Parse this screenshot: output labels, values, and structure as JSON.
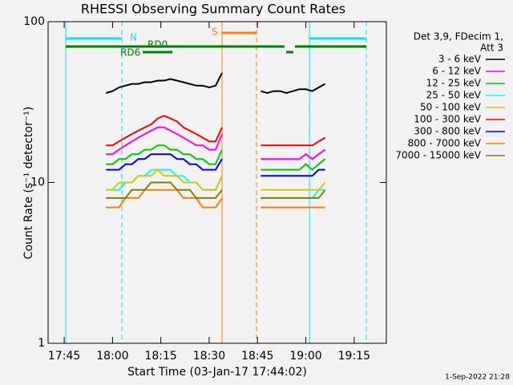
{
  "chart_data": {
    "type": "line",
    "title": "RHESSI Observing Summary Count Rates",
    "x_label": "Start Time (03-Jan-17 17:44:02)",
    "y_label": "Count Rate (s⁻¹ detector⁻¹)",
    "log_y": true,
    "xlim": [
      "17:40",
      "19:25"
    ],
    "ylim": [
      1,
      100
    ],
    "yticks": [
      1,
      10,
      100
    ],
    "xticks": [
      "17:45",
      "18:00",
      "18:15",
      "18:30",
      "18:45",
      "19:00",
      "19:15"
    ],
    "legend_header": [
      "Det 3,9, FDecim 1,",
      "Att 3"
    ],
    "annotations": [
      "N",
      "RD0",
      "RD6",
      "S"
    ],
    "timestamp": "1-Sep-2022 21:28",
    "x": [
      "17:58",
      "18:00",
      "18:02",
      "18:04",
      "18:06",
      "18:08",
      "18:10",
      "18:12",
      "18:14",
      "18:16",
      "18:18",
      "18:20",
      "18:22",
      "18:24",
      "18:26",
      "18:28",
      "18:30",
      "18:32",
      "18:34",
      "18:40",
      "18:46",
      "18:48",
      "18:50",
      "18:52",
      "18:54",
      "18:56",
      "18:58",
      "19:00",
      "19:02",
      "19:04",
      "19:06"
    ],
    "series": [
      {
        "name": "3 - 6 keV",
        "color": "#000000",
        "values": [
          36,
          37,
          39,
          40,
          41,
          41,
          42,
          42,
          43,
          43,
          44,
          43,
          42,
          41,
          40,
          40,
          39,
          40,
          48,
          null,
          37,
          36,
          37,
          37,
          36,
          37,
          38,
          38,
          37,
          39,
          41
        ]
      },
      {
        "name": "6 - 12 keV",
        "color": "#ff00ff",
        "values": [
          15,
          15,
          16,
          17,
          18,
          19,
          20,
          21,
          22,
          22,
          21,
          20,
          19,
          18,
          17,
          17,
          16,
          16,
          20,
          null,
          14,
          14,
          14,
          14,
          14,
          14,
          14,
          15,
          14,
          15,
          16
        ]
      },
      {
        "name": "12 - 25 keV",
        "color": "#00cc00",
        "values": [
          13,
          13,
          14,
          14,
          15,
          15,
          16,
          16,
          17,
          17,
          16,
          16,
          15,
          15,
          14,
          14,
          13,
          13,
          16,
          null,
          12,
          12,
          12,
          12,
          12,
          12,
          12,
          13,
          12,
          13,
          14
        ]
      },
      {
        "name": "25 - 50 keV",
        "color": "#00ffff",
        "values": [
          9,
          9,
          9,
          10,
          10,
          11,
          11,
          12,
          12,
          12,
          12,
          11,
          11,
          10,
          10,
          9,
          9,
          9,
          11,
          null,
          8,
          8,
          8,
          8,
          8,
          8,
          8,
          8,
          8,
          9,
          9
        ]
      },
      {
        "name": "50 - 100 keV",
        "color": "#cccc00",
        "values": [
          9,
          9,
          10,
          10,
          10,
          11,
          11,
          11,
          12,
          11,
          11,
          11,
          10,
          10,
          10,
          9,
          9,
          9,
          11,
          null,
          9,
          9,
          9,
          9,
          9,
          9,
          9,
          9,
          9,
          9,
          10
        ]
      },
      {
        "name": "100 - 300 keV",
        "color": "#ff0000",
        "values": [
          17,
          17,
          18,
          19,
          20,
          21,
          22,
          23,
          25,
          26,
          25,
          24,
          22,
          21,
          20,
          19,
          18,
          18,
          22,
          null,
          17,
          17,
          17,
          17,
          17,
          17,
          17,
          17,
          17,
          18,
          19
        ]
      },
      {
        "name": "300 - 800 keV",
        "color": "#0000ff",
        "values": [
          12,
          12,
          12,
          13,
          13,
          14,
          14,
          15,
          15,
          15,
          15,
          14,
          14,
          13,
          13,
          12,
          12,
          12,
          14,
          null,
          11,
          11,
          11,
          11,
          11,
          11,
          11,
          11,
          11,
          12,
          12
        ]
      },
      {
        "name": "800 - 7000 keV",
        "color": "#ff8000",
        "values": [
          7,
          7,
          7,
          8,
          8,
          8,
          9,
          9,
          9,
          9,
          9,
          9,
          8,
          8,
          8,
          7,
          7,
          7,
          8,
          null,
          7,
          7,
          7,
          7,
          7,
          7,
          7,
          7,
          7,
          7,
          7
        ]
      },
      {
        "name": "7000 - 15000 keV",
        "color": "#808000",
        "values": [
          8,
          8,
          8,
          8,
          9,
          9,
          9,
          10,
          10,
          10,
          10,
          9,
          9,
          9,
          8,
          8,
          8,
          8,
          9,
          null,
          8,
          8,
          8,
          8,
          8,
          8,
          8,
          8,
          8,
          8,
          9
        ]
      }
    ]
  }
}
